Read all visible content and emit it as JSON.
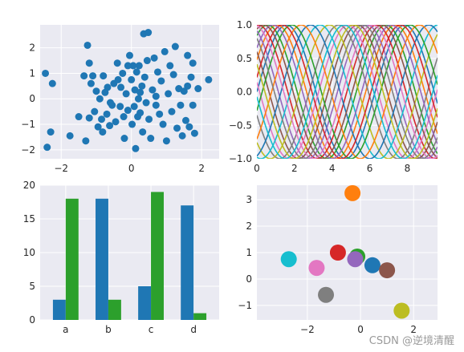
{
  "watermark": "CSDN @逆境清醒",
  "style": {
    "facecolor": "#EAEAF2",
    "gridcolor": "#FFFFFF"
  },
  "chart_data": [
    {
      "type": "scatter",
      "xlim": [
        -2.6,
        2.5
      ],
      "ylim": [
        -2.35,
        2.9
      ],
      "xticks": [
        -2,
        0,
        2
      ],
      "yticks": [
        -2,
        -1,
        0,
        1,
        2
      ],
      "xtick_labels": [
        "−2",
        "0",
        "2"
      ],
      "ytick_labels": [
        "−2",
        "−1",
        "0",
        "1",
        "2"
      ],
      "grid": true,
      "color": "#1F77B4",
      "points": [
        [
          -2.45,
          1.0
        ],
        [
          -2.25,
          0.6
        ],
        [
          -2.4,
          -1.9
        ],
        [
          -2.3,
          -1.3
        ],
        [
          -1.75,
          -1.45
        ],
        [
          -1.5,
          -0.7
        ],
        [
          -1.35,
          0.9
        ],
        [
          -1.3,
          -1.65
        ],
        [
          -1.25,
          2.1
        ],
        [
          -1.2,
          1.4
        ],
        [
          -1.15,
          0.6
        ],
        [
          -1.1,
          0.9
        ],
        [
          -1.05,
          -0.5
        ],
        [
          -1.0,
          0.3
        ],
        [
          -0.95,
          -1.1
        ],
        [
          -0.9,
          0.0
        ],
        [
          -0.85,
          -0.8
        ],
        [
          -0.82,
          -1.3
        ],
        [
          -0.8,
          0.9
        ],
        [
          -0.75,
          0.25
        ],
        [
          -0.7,
          -0.6
        ],
        [
          -0.68,
          0.45
        ],
        [
          -0.62,
          -1.05
        ],
        [
          -0.55,
          -0.25
        ],
        [
          -0.5,
          0.6
        ],
        [
          -0.45,
          -0.9
        ],
        [
          -0.4,
          1.4
        ],
        [
          -0.38,
          0.75
        ],
        [
          -0.32,
          -0.3
        ],
        [
          -0.3,
          0.45
        ],
        [
          -0.25,
          1.0
        ],
        [
          -0.22,
          -0.7
        ],
        [
          -0.2,
          -1.55
        ],
        [
          -0.15,
          0.2
        ],
        [
          -0.1,
          -0.45
        ],
        [
          -0.05,
          1.7
        ],
        [
          0.0,
          0.75
        ],
        [
          0.02,
          -1.0
        ],
        [
          0.05,
          1.3
        ],
        [
          0.08,
          -0.3
        ],
        [
          0.1,
          0.35
        ],
        [
          0.12,
          -1.95
        ],
        [
          0.15,
          1.05
        ],
        [
          0.18,
          -0.7
        ],
        [
          0.2,
          0.0
        ],
        [
          0.22,
          1.3
        ],
        [
          0.25,
          -0.55
        ],
        [
          0.3,
          0.5
        ],
        [
          0.32,
          -1.3
        ],
        [
          0.35,
          2.55
        ],
        [
          0.38,
          0.85
        ],
        [
          0.42,
          -0.15
        ],
        [
          0.45,
          1.5
        ],
        [
          0.48,
          2.6
        ],
        [
          0.5,
          -0.8
        ],
        [
          0.55,
          -1.55
        ],
        [
          0.6,
          0.35
        ],
        [
          0.65,
          1.6
        ],
        [
          0.7,
          -0.25
        ],
        [
          0.75,
          1.05
        ],
        [
          0.8,
          -0.6
        ],
        [
          0.85,
          0.7
        ],
        [
          0.9,
          -1.0
        ],
        [
          0.95,
          1.85
        ],
        [
          1.0,
          -1.65
        ],
        [
          1.05,
          0.2
        ],
        [
          1.1,
          1.3
        ],
        [
          1.15,
          -0.5
        ],
        [
          1.2,
          0.95
        ],
        [
          1.25,
          2.05
        ],
        [
          1.3,
          -1.15
        ],
        [
          1.35,
          0.4
        ],
        [
          1.4,
          -0.25
        ],
        [
          1.45,
          -1.45
        ],
        [
          1.5,
          0.3
        ],
        [
          1.55,
          -0.85
        ],
        [
          1.6,
          0.5
        ],
        [
          1.65,
          -1.1
        ],
        [
          1.7,
          0.85
        ],
        [
          1.75,
          -0.25
        ],
        [
          1.8,
          -1.35
        ],
        [
          1.6,
          1.7
        ],
        [
          1.75,
          1.4
        ],
        [
          2.2,
          0.75
        ],
        [
          1.9,
          0.4
        ],
        [
          -0.6,
          -0.15
        ],
        [
          0.25,
          0.25
        ],
        [
          -1.2,
          -0.75
        ],
        [
          0.7,
          0.1
        ],
        [
          -0.1,
          1.3
        ]
      ]
    },
    {
      "type": "line",
      "xlim": [
        0,
        9.6
      ],
      "ylim": [
        -1.0,
        1.0
      ],
      "xticks": [
        0,
        2,
        4,
        6,
        8
      ],
      "yticks": [
        -1.0,
        -0.5,
        0.0,
        0.5,
        1.0
      ],
      "xtick_labels": [
        "0",
        "2",
        "4",
        "6",
        "8"
      ],
      "ytick_labels": [
        "−1.0",
        "−0.5",
        "0.0",
        "0.5",
        "1.0"
      ],
      "grid": true,
      "function": "sin",
      "x_step": 0.1,
      "phase_step": 0.5,
      "series": [
        {
          "phase": 0.0,
          "color": "#1F77B4"
        },
        {
          "phase": 0.5,
          "color": "#FF7F0E"
        },
        {
          "phase": 1.0,
          "color": "#2CA02C"
        },
        {
          "phase": 1.5,
          "color": "#D62728"
        },
        {
          "phase": 2.0,
          "color": "#9467BD"
        },
        {
          "phase": 2.5,
          "color": "#8C564B"
        },
        {
          "phase": 3.0,
          "color": "#E377C2"
        },
        {
          "phase": 3.5,
          "color": "#7F7F7F"
        },
        {
          "phase": 4.0,
          "color": "#BCBD22"
        },
        {
          "phase": 4.5,
          "color": "#17BECF"
        },
        {
          "phase": 5.0,
          "color": "#1F77B4"
        },
        {
          "phase": 5.5,
          "color": "#FF7F0E"
        },
        {
          "phase": 6.0,
          "color": "#2CA02C"
        },
        {
          "phase": 6.5,
          "color": "#D62728"
        },
        {
          "phase": 7.0,
          "color": "#9467BD"
        },
        {
          "phase": 7.5,
          "color": "#8C564B"
        },
        {
          "phase": 8.0,
          "color": "#E377C2"
        },
        {
          "phase": 8.5,
          "color": "#7F7F7F"
        },
        {
          "phase": 9.0,
          "color": "#BCBD22"
        },
        {
          "phase": 9.5,
          "color": "#17BECF"
        }
      ]
    },
    {
      "type": "bar",
      "categories": [
        "a",
        "b",
        "c",
        "d"
      ],
      "ylim": [
        0,
        20
      ],
      "yticks": [
        0,
        5,
        10,
        15,
        20
      ],
      "ytick_labels": [
        "0",
        "5",
        "10",
        "15",
        "20"
      ],
      "grid": true,
      "series": [
        {
          "values": [
            3,
            18,
            5,
            17
          ],
          "color": "#1F77B4"
        },
        {
          "values": [
            18,
            3,
            19,
            1
          ],
          "color": "#2CA02C"
        }
      ]
    },
    {
      "type": "scatter",
      "xlim": [
        -3.9,
        2.9
      ],
      "ylim": [
        -1.55,
        3.55
      ],
      "xticks": [
        -2,
        0,
        2
      ],
      "yticks": [
        -1,
        0,
        1,
        2,
        3
      ],
      "xtick_labels": [
        "−2",
        "0",
        "2"
      ],
      "ytick_labels": [
        "−1",
        "0",
        "1",
        "2",
        "3"
      ],
      "grid": true,
      "points": [
        {
          "x": -0.3,
          "y": 3.25,
          "color": "#FF7F0E"
        },
        {
          "x": -2.7,
          "y": 0.75,
          "color": "#17BECF"
        },
        {
          "x": -1.65,
          "y": 0.42,
          "color": "#E377C2"
        },
        {
          "x": -0.85,
          "y": 1.0,
          "color": "#D62728"
        },
        {
          "x": -0.12,
          "y": 0.85,
          "color": "#2CA02C"
        },
        {
          "x": -0.2,
          "y": 0.75,
          "color": "#9467BD"
        },
        {
          "x": 0.45,
          "y": 0.52,
          "color": "#1F77B4"
        },
        {
          "x": 1.0,
          "y": 0.33,
          "color": "#8C564B"
        },
        {
          "x": -1.3,
          "y": -0.6,
          "color": "#7F7F7F"
        },
        {
          "x": 1.55,
          "y": -1.2,
          "color": "#BCBD22"
        }
      ]
    }
  ]
}
